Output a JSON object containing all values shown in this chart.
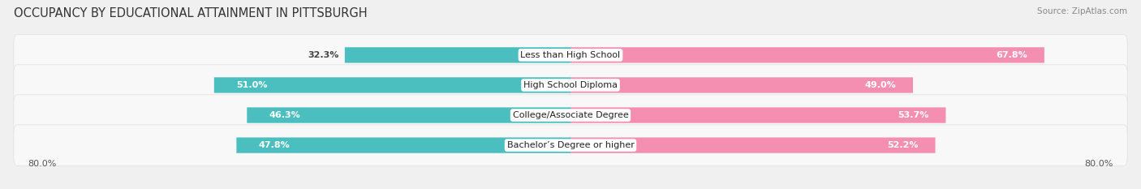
{
  "title": "OCCUPANCY BY EDUCATIONAL ATTAINMENT IN PITTSBURGH",
  "source": "Source: ZipAtlas.com",
  "categories": [
    "Less than High School",
    "High School Diploma",
    "College/Associate Degree",
    "Bachelor’s Degree or higher"
  ],
  "owner_values": [
    32.3,
    51.0,
    46.3,
    47.8
  ],
  "renter_values": [
    67.8,
    49.0,
    53.7,
    52.2
  ],
  "owner_color": "#4BBFBF",
  "renter_color": "#F48FB1",
  "bg_color": "#f0f0f0",
  "row_bg_color": "#f8f8f8",
  "row_border_color": "#e0e0e0",
  "axis_left_label": "80.0%",
  "axis_right_label": "80.0%",
  "max_pct": 80.0,
  "title_fontsize": 10.5,
  "label_fontsize": 8,
  "value_fontsize": 8,
  "legend_fontsize": 8,
  "source_fontsize": 7.5
}
